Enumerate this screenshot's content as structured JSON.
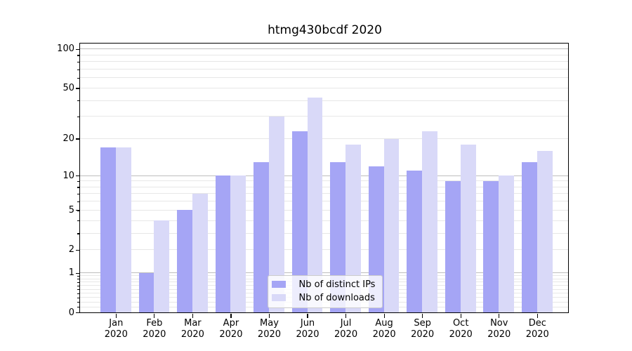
{
  "chart_data": {
    "type": "bar",
    "title": "htmg430bcdf 2020",
    "categories": [
      "Jan",
      "Feb",
      "Mar",
      "Apr",
      "May",
      "Jun",
      "Jul",
      "Aug",
      "Sep",
      "Oct",
      "Nov",
      "Dec"
    ],
    "x_tick_second_line": "2020",
    "series": [
      {
        "name": "Nb of distinct IPs",
        "color": "#a5a5f5",
        "values": [
          17,
          1,
          5,
          10,
          13,
          23,
          13,
          12,
          11,
          9,
          9,
          13
        ]
      },
      {
        "name": "Nb of downloads",
        "color": "#d9d9f8",
        "values": [
          17,
          4,
          7,
          10,
          30,
          42,
          18,
          20,
          23,
          18,
          10,
          16
        ]
      }
    ],
    "yscale": "log1p",
    "ylim": [
      0,
      111
    ],
    "y_ticks": [
      0,
      1,
      2,
      5,
      10,
      20,
      50,
      100
    ],
    "y_minor_ticks": [
      0.1,
      0.2,
      0.3,
      0.4,
      0.5,
      0.6,
      0.7,
      0.8,
      0.9,
      2,
      3,
      4,
      5,
      6,
      7,
      8,
      9,
      20,
      30,
      40,
      50,
      60,
      70,
      80,
      90
    ],
    "grid": true,
    "grid_major_at": [
      1,
      10,
      100
    ],
    "legend_position": "lower center",
    "colors": {
      "background": "#ffffff",
      "spine": "#000000",
      "grid_major": "#bdbdbd",
      "grid_minor": "#e7e7e7",
      "legend_border": "#cccccc",
      "text": "#000000"
    }
  }
}
